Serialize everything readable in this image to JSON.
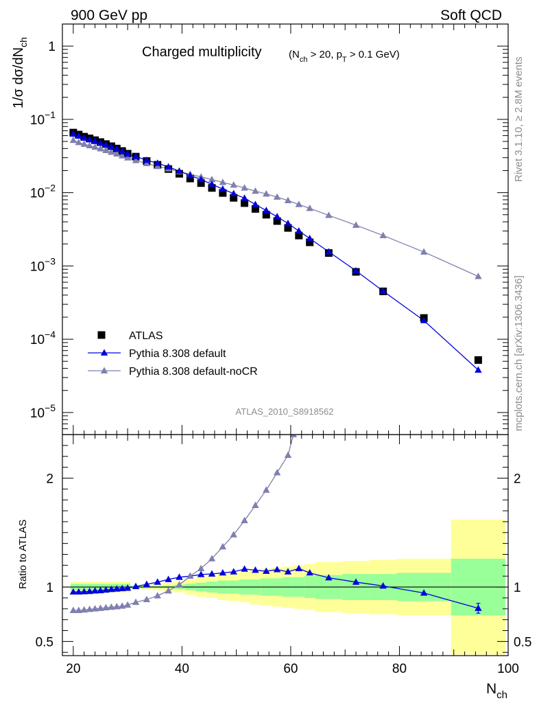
{
  "header": {
    "left": "900 GeV pp",
    "right": "Soft QCD"
  },
  "side_text": {
    "rivet": "Rivet 3.1.10, ≥ 2.8M events",
    "mcplots": "mcplots.cern.ch [arXiv:1306.3436]"
  },
  "watermark": "ATLAS_2010_S8918562",
  "colors": {
    "data": "#000000",
    "default": "#0000dd",
    "nocr": "#7f7fb0",
    "band_inner": "#99ff99",
    "band_outer": "#ffff99"
  },
  "chart_data": {
    "type": "scatter",
    "title": "Charged multiplicity",
    "title_cut": "(N_ch > 20, p_T > 0.1 GeV)",
    "xlabel": "N_ch",
    "ylabel": "1/σ dσ/dN_ch",
    "ratio_ylabel": "Ratio to ATLAS",
    "xlim": [
      18,
      100
    ],
    "ylim_main": [
      5e-06,
      2.0
    ],
    "ylog": true,
    "ylim_ratio": [
      0.37,
      2.4
    ],
    "x_ticks": [
      "20",
      "40",
      "60",
      "80",
      "100"
    ],
    "y_ticks_main": [
      "1",
      "10^-1",
      "10^-2",
      "10^-3",
      "10^-4",
      "10^-5"
    ],
    "y_ticks_ratio": [
      "0.5",
      "1",
      "2"
    ],
    "legend": {
      "position": "bottom-left",
      "entries": [
        "ATLAS",
        "Pythia 8.308 default",
        "Pythia 8.308 default-noCR"
      ]
    },
    "series": [
      {
        "name": "ATLAS",
        "marker": "square",
        "x": [
          20,
          21,
          22,
          23,
          24,
          25,
          26,
          27,
          28,
          29,
          30,
          31.5,
          33.5,
          35.5,
          37.5,
          39.5,
          41.5,
          43.5,
          45.5,
          47.5,
          49.5,
          51.5,
          53.5,
          55.5,
          57.5,
          59.5,
          61.5,
          63.5,
          67,
          72,
          77,
          84.5,
          94.5
        ],
        "y": [
          0.066,
          0.062,
          0.058,
          0.055,
          0.052,
          0.049,
          0.046,
          0.043,
          0.04,
          0.037,
          0.034,
          0.031,
          0.027,
          0.024,
          0.021,
          0.0181,
          0.0156,
          0.0135,
          0.0116,
          0.0099,
          0.0085,
          0.0072,
          0.006,
          0.005,
          0.0041,
          0.0033,
          0.0026,
          0.0021,
          0.0015,
          0.00083,
          0.00045,
          0.000195,
          5.2e-05
        ]
      },
      {
        "name": "Pythia 8.308 default",
        "marker": "triangle",
        "x": [
          20,
          21,
          22,
          23,
          24,
          25,
          26,
          27,
          28,
          29,
          30,
          31.5,
          33.5,
          35.5,
          37.5,
          39.5,
          41.5,
          43.5,
          45.5,
          47.5,
          49.5,
          51.5,
          53.5,
          55.5,
          57.5,
          59.5,
          61.5,
          63.5,
          67,
          72,
          77,
          84.5,
          94.5
        ],
        "y": [
          0.063,
          0.0592,
          0.0556,
          0.0528,
          0.0502,
          0.0474,
          0.0448,
          0.0421,
          0.0393,
          0.0365,
          0.0336,
          0.0312,
          0.0277,
          0.0252,
          0.0225,
          0.0197,
          0.0172,
          0.0151,
          0.013,
          0.0112,
          0.0097,
          0.0084,
          0.0069,
          0.0057,
          0.0047,
          0.0038,
          0.003,
          0.00237,
          0.00156,
          0.00086,
          0.000454,
          0.00018,
          3.8e-05
        ]
      },
      {
        "name": "Pythia 8.308 default-noCR",
        "marker": "triangle",
        "x": [
          20,
          21,
          22,
          23,
          24,
          25,
          26,
          27,
          28,
          29,
          30,
          31.5,
          33.5,
          35.5,
          37.5,
          39.5,
          41.5,
          43.5,
          45.5,
          47.5,
          49.5,
          51.5,
          53.5,
          55.5,
          57.5,
          59.5,
          61.5,
          63.5,
          67,
          72,
          77,
          84.5,
          94.5
        ],
        "y": [
          0.0518,
          0.0484,
          0.0459,
          0.0438,
          0.0418,
          0.0397,
          0.0377,
          0.0357,
          0.0338,
          0.0319,
          0.0299,
          0.0275,
          0.025,
          0.0228,
          0.0212,
          0.0193,
          0.0178,
          0.0164,
          0.0151,
          0.0138,
          0.0127,
          0.0116,
          0.0105,
          0.0096,
          0.0087,
          0.0078,
          0.0069,
          0.0061,
          0.0049,
          0.0036,
          0.0026,
          0.00155,
          0.00072
        ]
      }
    ],
    "ratio_series": [
      {
        "name": "Pythia 8.308 default",
        "x": [
          20,
          21,
          22,
          23,
          24,
          25,
          26,
          27,
          28,
          29,
          30,
          31.5,
          33.5,
          35.5,
          37.5,
          39.5,
          41.5,
          43.5,
          45.5,
          47.5,
          49.5,
          51.5,
          53.5,
          55.5,
          57.5,
          59.5,
          61.5,
          63.5,
          67,
          72,
          77,
          84.5,
          94.5
        ],
        "y": [
          0.955,
          0.955,
          0.958,
          0.96,
          0.965,
          0.967,
          0.973,
          0.978,
          0.982,
          0.986,
          0.99,
          1.005,
          1.025,
          1.045,
          1.07,
          1.09,
          1.1,
          1.115,
          1.12,
          1.13,
          1.14,
          1.165,
          1.155,
          1.145,
          1.16,
          1.14,
          1.17,
          1.13,
          1.085,
          1.045,
          1.01,
          0.945,
          0.805
        ],
        "err": [
          0,
          0,
          0,
          0,
          0,
          0,
          0,
          0,
          0,
          0,
          0,
          0,
          0,
          0,
          0,
          0,
          0,
          0,
          0,
          0,
          0,
          0,
          0,
          0,
          0,
          0,
          0,
          0,
          0,
          0,
          0,
          0,
          0.045
        ]
      },
      {
        "name": "Pythia 8.308 default-noCR",
        "x": [
          20,
          21,
          22,
          23,
          24,
          25,
          26,
          27,
          28,
          29,
          30,
          31.5,
          33.5,
          35.5,
          37.5,
          39.5,
          41.5,
          43.5,
          45.5,
          47.5,
          49.5,
          51.5,
          53.5,
          55.5,
          57.5,
          59.5,
          60.5
        ],
        "y": [
          0.785,
          0.785,
          0.79,
          0.795,
          0.8,
          0.805,
          0.81,
          0.815,
          0.82,
          0.825,
          0.835,
          0.86,
          0.885,
          0.92,
          0.965,
          1.02,
          1.1,
          1.17,
          1.26,
          1.37,
          1.48,
          1.61,
          1.75,
          1.89,
          2.05,
          2.21,
          2.4
        ]
      }
    ],
    "bands": {
      "edges": [
        19.5,
        30.5,
        32.5,
        34.5,
        36.5,
        38.5,
        40.5,
        42.5,
        44.5,
        46.5,
        48.5,
        50.5,
        52.5,
        54.5,
        56.5,
        58.5,
        60.5,
        62.5,
        64.5,
        69.5,
        74.5,
        79.5,
        89.5,
        99.5
      ],
      "inner_half": [
        0.03,
        0.01,
        0.01,
        0.01,
        0.01,
        0.02,
        0.03,
        0.04,
        0.05,
        0.06,
        0.06,
        0.07,
        0.07,
        0.08,
        0.08,
        0.09,
        0.09,
        0.1,
        0.11,
        0.12,
        0.12,
        0.13,
        0.26
      ],
      "outer_half": [
        0.05,
        0.02,
        0.02,
        0.03,
        0.04,
        0.05,
        0.07,
        0.09,
        0.1,
        0.12,
        0.13,
        0.14,
        0.16,
        0.17,
        0.18,
        0.19,
        0.2,
        0.21,
        0.23,
        0.24,
        0.25,
        0.26,
        0.62
      ]
    }
  }
}
